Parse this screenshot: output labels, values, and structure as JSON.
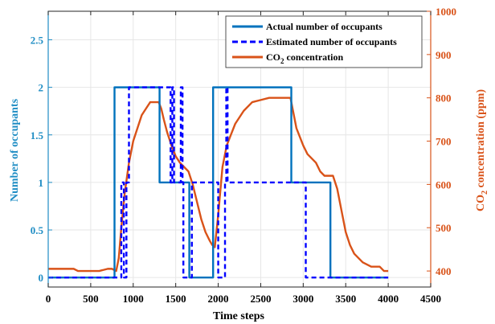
{
  "chart_data": {
    "type": "line",
    "title": "",
    "xlabel": "Time steps",
    "ylabel_left": "Number of occupants",
    "ylabel_right_parts": [
      "CO",
      "2",
      " concentration (ppm)"
    ],
    "xlim": [
      0,
      4500
    ],
    "ylim_left": [
      -0.1,
      2.8
    ],
    "ylim_right": [
      363,
      1000
    ],
    "x_ticks": [
      0,
      500,
      1000,
      1500,
      2000,
      2500,
      3000,
      3500,
      4000,
      4500
    ],
    "x_tick_labels": [
      "0",
      "500",
      "1000",
      "1500",
      "2000",
      "2500",
      "3000",
      "3500",
      "4000",
      "4500"
    ],
    "y_left_ticks": [
      0,
      0.5,
      1,
      1.5,
      2,
      2.5
    ],
    "y_left_tick_labels": [
      "0",
      "0.5",
      "1",
      "1.5",
      "2",
      "2.5"
    ],
    "y_right_ticks": [
      400,
      500,
      600,
      700,
      800,
      900,
      1000
    ],
    "y_right_tick_labels": [
      "400",
      "500",
      "600",
      "700",
      "800",
      "900",
      "1000"
    ],
    "grid": true,
    "legend_position": "top-right",
    "colors": {
      "left_axis": "#1f8dc4",
      "right_axis": "#d95319",
      "actual": "#0072bd",
      "estimated": "#0000ff",
      "co2": "#d95319",
      "grid": "#e6e6e6",
      "frame": "#262626"
    },
    "series": [
      {
        "name": "Actual number of occupants",
        "axis": "left",
        "style": "solid",
        "x": [
          0,
          780,
          780,
          1310,
          1310,
          1660,
          1660,
          1940,
          1940,
          2860,
          2860,
          3320,
          3320,
          4000
        ],
        "y": [
          0,
          0,
          2,
          2,
          1,
          1,
          0,
          0,
          2,
          2,
          1,
          1,
          0,
          0
        ]
      },
      {
        "name": "Estimated number of occupants",
        "axis": "left",
        "style": "dashed",
        "x": [
          0,
          860,
          860,
          890,
          890,
          920,
          920,
          950,
          950,
          1440,
          1440,
          1460,
          1460,
          1480,
          1480,
          1560,
          1560,
          1580,
          1580,
          1590,
          1590,
          1690,
          1690,
          2000,
          2000,
          2080,
          2080,
          2095,
          2095,
          2110,
          2110,
          3030,
          3030,
          3350,
          3350,
          4000
        ],
        "y": [
          0,
          0,
          1,
          1,
          0,
          0,
          1,
          1,
          2,
          2,
          1,
          1,
          2,
          2,
          1,
          1,
          2,
          2,
          1,
          1,
          0,
          0,
          1,
          1,
          0,
          0,
          1,
          1,
          2,
          2,
          1,
          1,
          0,
          0,
          0,
          0
        ]
      },
      {
        "name_parts": [
          "CO",
          "2",
          " concentration"
        ],
        "axis": "right",
        "style": "solid",
        "x": [
          0,
          100,
          200,
          300,
          350,
          400,
          500,
          600,
          700,
          750,
          800,
          830,
          860,
          900,
          950,
          1000,
          1050,
          1100,
          1150,
          1200,
          1250,
          1300,
          1330,
          1360,
          1400,
          1450,
          1500,
          1550,
          1600,
          1650,
          1700,
          1750,
          1800,
          1850,
          1900,
          1930,
          1960,
          2000,
          2050,
          2100,
          2150,
          2200,
          2300,
          2400,
          2500,
          2600,
          2700,
          2800,
          2850,
          2880,
          2920,
          2960,
          3000,
          3050,
          3100,
          3150,
          3200,
          3250,
          3300,
          3350,
          3400,
          3450,
          3500,
          3550,
          3600,
          3650,
          3700,
          3800,
          3900,
          3950,
          4000
        ],
        "y": [
          405,
          405,
          405,
          405,
          400,
          400,
          400,
          400,
          405,
          405,
          400,
          430,
          500,
          580,
          650,
          700,
          730,
          760,
          775,
          790,
          790,
          790,
          775,
          750,
          720,
          690,
          665,
          650,
          640,
          630,
          600,
          560,
          520,
          490,
          470,
          460,
          455,
          530,
          640,
          690,
          715,
          740,
          770,
          790,
          795,
          800,
          800,
          800,
          800,
          770,
          730,
          710,
          690,
          670,
          660,
          650,
          630,
          620,
          620,
          620,
          590,
          540,
          490,
          460,
          440,
          430,
          420,
          410,
          410,
          400,
          400
        ]
      }
    ]
  }
}
